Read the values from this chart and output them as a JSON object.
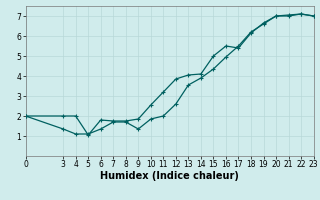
{
  "xlabel": "Humidex (Indice chaleur)",
  "bg_color": "#d0ecec",
  "grid_color": "#b8d8d8",
  "line_color": "#006060",
  "line1_x": [
    0,
    3,
    4,
    5,
    6,
    7,
    8,
    9,
    10,
    11,
    12,
    13,
    14,
    15,
    16,
    17,
    18,
    19,
    20,
    21,
    22,
    23
  ],
  "line1_y": [
    2.0,
    2.0,
    2.0,
    1.05,
    1.8,
    1.75,
    1.75,
    1.85,
    2.55,
    3.2,
    3.85,
    4.05,
    4.1,
    5.0,
    5.5,
    5.4,
    6.15,
    6.65,
    7.0,
    7.05,
    7.1,
    7.0
  ],
  "line2_x": [
    0,
    3,
    4,
    5,
    6,
    7,
    8,
    9,
    10,
    11,
    12,
    13,
    14,
    15,
    16,
    17,
    18,
    19,
    20,
    21,
    22,
    23
  ],
  "line2_y": [
    2.0,
    1.35,
    1.1,
    1.1,
    1.35,
    1.7,
    1.7,
    1.35,
    1.85,
    2.0,
    2.6,
    3.55,
    3.9,
    4.35,
    4.95,
    5.5,
    6.2,
    6.6,
    7.0,
    7.0,
    7.1,
    7.0
  ],
  "xlim": [
    0,
    23
  ],
  "ylim": [
    0,
    7.5
  ],
  "xticks": [
    0,
    3,
    4,
    5,
    6,
    7,
    8,
    9,
    10,
    11,
    12,
    13,
    14,
    15,
    16,
    17,
    18,
    19,
    20,
    21,
    22,
    23
  ],
  "yticks": [
    1,
    2,
    3,
    4,
    5,
    6,
    7
  ],
  "marker_size": 3,
  "linewidth": 0.9,
  "tick_fontsize": 5.5,
  "xlabel_fontsize": 7
}
